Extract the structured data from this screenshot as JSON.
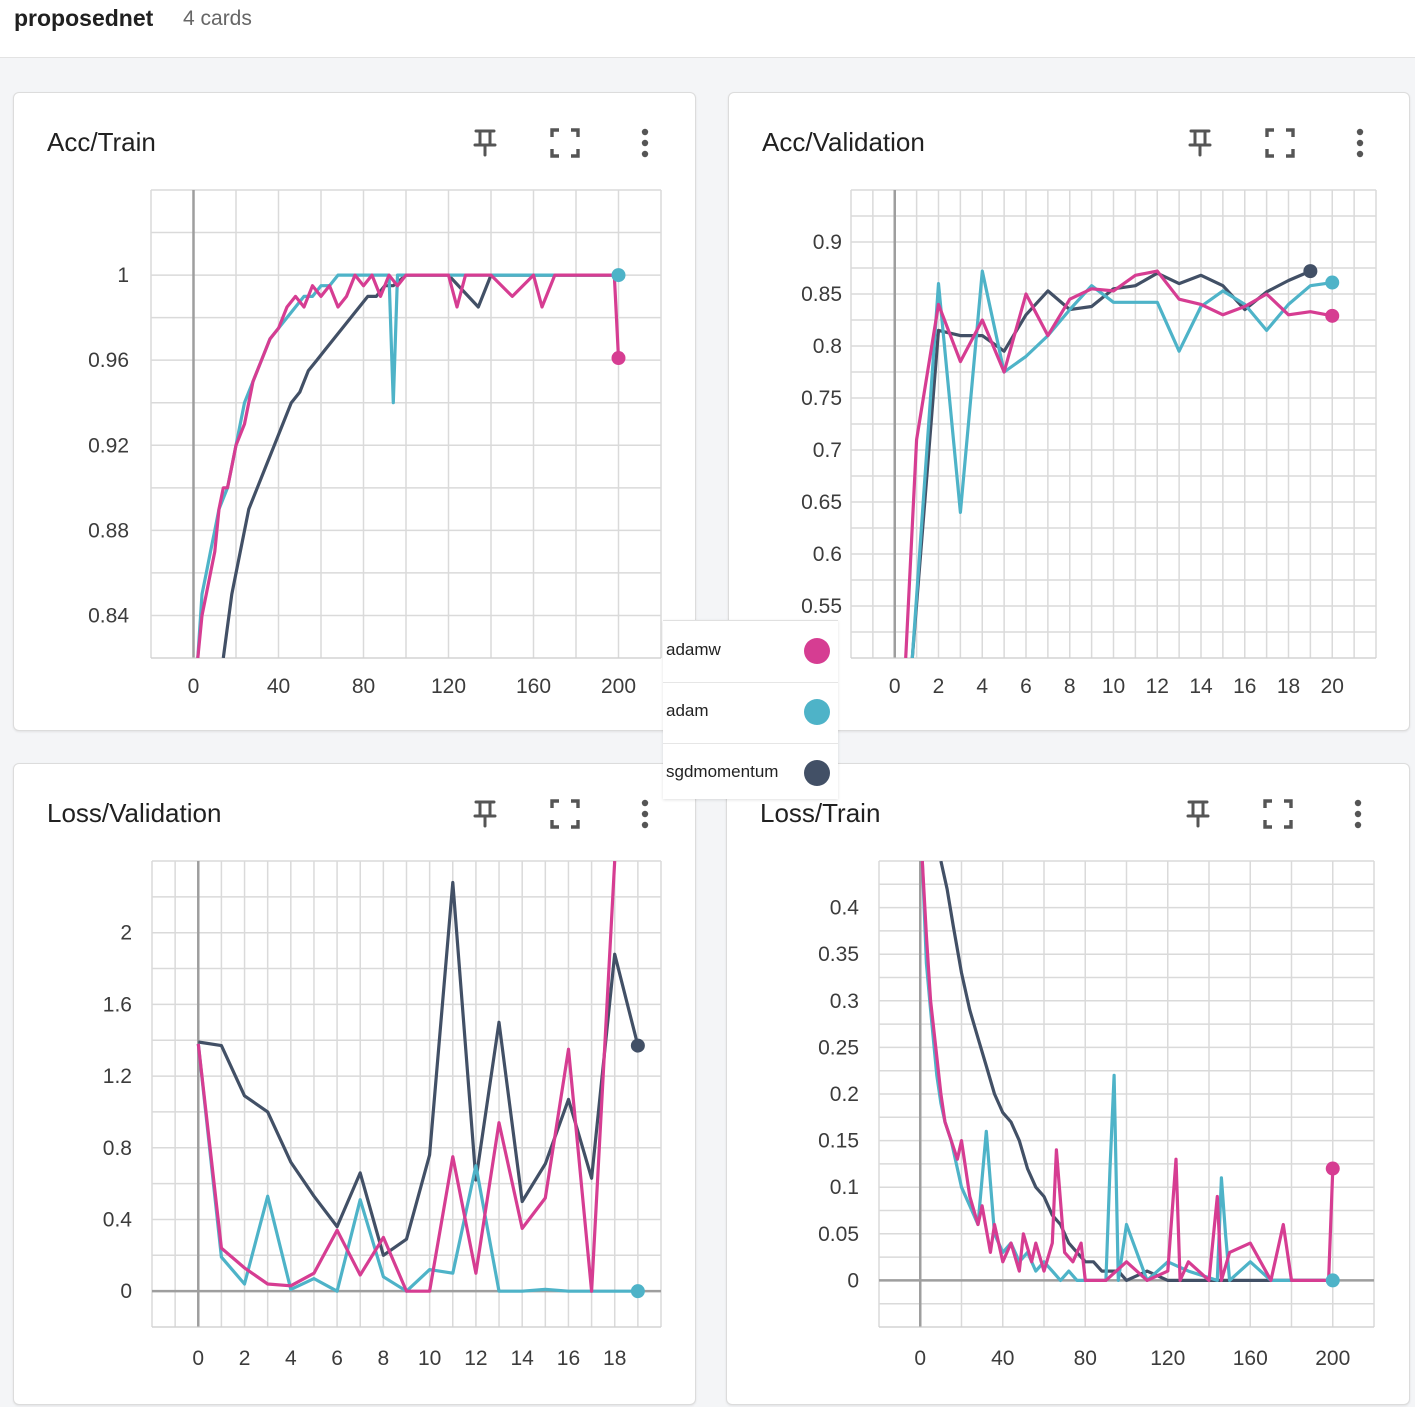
{
  "header": {
    "title": "proposednet",
    "card_count": "4 cards"
  },
  "colors": {
    "adamw": "#d63d92",
    "adam": "#4eb3c8",
    "sgdmomentum": "#425066"
  },
  "legend": {
    "items": [
      {
        "name": "adamw",
        "color": "#d63d92"
      },
      {
        "name": "adam",
        "color": "#4eb3c8"
      },
      {
        "name": "sgdmomentum",
        "color": "#425066"
      }
    ]
  },
  "icons": {
    "pin": "pin-icon",
    "expand": "fullscreen-icon",
    "menu": "more-vert-icon"
  },
  "chart_data": [
    {
      "type": "line",
      "title": "Acc/Train",
      "xlim": [
        -20,
        220
      ],
      "ylim": [
        0.82,
        1.04
      ],
      "xticks": [
        0,
        40,
        80,
        120,
        160,
        200
      ],
      "yticks": [
        0.84,
        0.88,
        0.92,
        0.96,
        1
      ],
      "ytick_labels": [
        "0.84",
        "0.88",
        "0.92",
        "0.96",
        "1"
      ],
      "grid": true,
      "series": [
        {
          "name": "adamw",
          "color": "#d63d92",
          "end_marker": true,
          "x": [
            2,
            4,
            6,
            8,
            10,
            12,
            14,
            16,
            18,
            20,
            24,
            28,
            32,
            36,
            40,
            44,
            48,
            52,
            56,
            60,
            64,
            68,
            72,
            76,
            80,
            84,
            88,
            92,
            96,
            100,
            110,
            120,
            124,
            128,
            136,
            140,
            150,
            160,
            164,
            170,
            180,
            190,
            198,
            200
          ],
          "y": [
            0.82,
            0.84,
            0.85,
            0.86,
            0.87,
            0.89,
            0.9,
            0.9,
            0.91,
            0.92,
            0.93,
            0.95,
            0.96,
            0.97,
            0.975,
            0.985,
            0.99,
            0.985,
            0.995,
            0.99,
            0.995,
            0.985,
            0.99,
            1.0,
            0.995,
            1.0,
            0.99,
            1.0,
            0.995,
            1.0,
            1.0,
            1.0,
            0.985,
            1.0,
            1.0,
            1.0,
            0.99,
            1.0,
            0.985,
            1.0,
            1.0,
            1.0,
            1.0,
            0.961
          ]
        },
        {
          "name": "adam",
          "color": "#4eb3c8",
          "end_marker": true,
          "x": [
            2,
            4,
            6,
            8,
            10,
            12,
            16,
            20,
            24,
            28,
            32,
            36,
            40,
            44,
            48,
            52,
            56,
            60,
            64,
            68,
            72,
            76,
            80,
            84,
            88,
            92,
            94,
            96,
            100,
            110,
            120,
            130,
            140,
            150,
            160,
            170,
            180,
            190,
            200
          ],
          "y": [
            0.82,
            0.85,
            0.86,
            0.87,
            0.88,
            0.89,
            0.9,
            0.92,
            0.94,
            0.95,
            0.96,
            0.97,
            0.975,
            0.98,
            0.985,
            0.99,
            0.99,
            0.995,
            0.995,
            1.0,
            1.0,
            1.0,
            1.0,
            1.0,
            1.0,
            1.0,
            0.94,
            1.0,
            1.0,
            1.0,
            1.0,
            1.0,
            1.0,
            1.0,
            1.0,
            1.0,
            1.0,
            1.0,
            1.0
          ]
        },
        {
          "name": "sgdmomentum",
          "color": "#425066",
          "end_marker": false,
          "x": [
            14,
            18,
            22,
            26,
            30,
            34,
            38,
            42,
            46,
            50,
            54,
            58,
            62,
            66,
            70,
            74,
            78,
            82,
            86,
            90,
            94,
            100,
            110,
            120,
            134,
            140,
            150,
            160,
            170,
            180,
            190,
            200
          ],
          "y": [
            0.82,
            0.85,
            0.87,
            0.89,
            0.9,
            0.91,
            0.92,
            0.93,
            0.94,
            0.945,
            0.955,
            0.96,
            0.965,
            0.97,
            0.975,
            0.98,
            0.985,
            0.99,
            0.99,
            0.995,
            0.995,
            1.0,
            1.0,
            1.0,
            0.985,
            1.0,
            1.0,
            1.0,
            1.0,
            1.0,
            1.0,
            1.0
          ]
        }
      ]
    },
    {
      "type": "line",
      "title": "Acc/Validation",
      "xlim": [
        -2,
        22
      ],
      "ylim": [
        0.5,
        0.95
      ],
      "xticks": [
        0,
        2,
        4,
        6,
        8,
        10,
        12,
        14,
        16,
        18,
        20
      ],
      "yticks": [
        0.55,
        0.6,
        0.65,
        0.7,
        0.75,
        0.8,
        0.85,
        0.9
      ],
      "ytick_labels": [
        "0.55",
        "0.6",
        "0.65",
        "0.7",
        "0.75",
        "0.8",
        "0.85",
        "0.9"
      ],
      "grid": true,
      "series": [
        {
          "name": "adamw",
          "color": "#d63d92",
          "end_marker": true,
          "x": [
            0.5,
            1,
            2,
            3,
            4,
            5,
            6,
            7,
            8,
            9,
            10,
            11,
            12,
            13,
            14,
            15,
            16,
            17,
            18,
            19,
            20
          ],
          "y": [
            0.5,
            0.71,
            0.84,
            0.785,
            0.825,
            0.775,
            0.85,
            0.81,
            0.845,
            0.855,
            0.853,
            0.868,
            0.872,
            0.845,
            0.84,
            0.83,
            0.838,
            0.85,
            0.83,
            0.833,
            0.829
          ]
        },
        {
          "name": "adam",
          "color": "#4eb3c8",
          "end_marker": true,
          "x": [
            0.8,
            2,
            3,
            4,
            5,
            6,
            7,
            8,
            9,
            10,
            11,
            12,
            13,
            14,
            15,
            16,
            17,
            18,
            19,
            20
          ],
          "y": [
            0.5,
            0.86,
            0.64,
            0.872,
            0.775,
            0.79,
            0.81,
            0.835,
            0.858,
            0.842,
            0.842,
            0.842,
            0.795,
            0.838,
            0.853,
            0.84,
            0.815,
            0.84,
            0.858,
            0.861
          ]
        },
        {
          "name": "sgdmomentum",
          "color": "#425066",
          "end_marker": true,
          "x": [
            0.8,
            2,
            3,
            4,
            5,
            6,
            7,
            8,
            9,
            10,
            11,
            12,
            13,
            14,
            15,
            16,
            17,
            18,
            19
          ],
          "y": [
            0.5,
            0.815,
            0.81,
            0.81,
            0.795,
            0.83,
            0.853,
            0.835,
            0.838,
            0.855,
            0.858,
            0.87,
            0.86,
            0.868,
            0.858,
            0.835,
            0.852,
            0.863,
            0.872
          ]
        }
      ]
    },
    {
      "type": "line",
      "title": "Loss/Validation",
      "xlim": [
        -2,
        20
      ],
      "ylim": [
        -0.2,
        2.4
      ],
      "xticks": [
        0,
        2,
        4,
        6,
        8,
        10,
        12,
        14,
        16,
        18
      ],
      "yticks": [
        0,
        0.4,
        0.8,
        1.2,
        1.6,
        2
      ],
      "ytick_labels": [
        "0",
        "0.4",
        "0.8",
        "1.2",
        "1.6",
        "2"
      ],
      "grid": true,
      "series": [
        {
          "name": "adamw",
          "color": "#d63d92",
          "end_marker": false,
          "x": [
            0,
            1,
            2,
            3,
            4,
            5,
            6,
            7,
            8,
            9,
            10,
            11,
            12,
            13,
            14,
            15,
            16,
            17,
            18
          ],
          "y": [
            1.38,
            0.24,
            0.13,
            0.04,
            0.03,
            0.1,
            0.34,
            0.09,
            0.3,
            0.0,
            0.0,
            0.75,
            0.1,
            0.94,
            0.35,
            0.52,
            1.35,
            0.0,
            2.4
          ]
        },
        {
          "name": "adam",
          "color": "#4eb3c8",
          "end_marker": true,
          "x": [
            0,
            1,
            2,
            3,
            4,
            5,
            6,
            7,
            8,
            9,
            10,
            11,
            12,
            13,
            14,
            15,
            16,
            17,
            18,
            19
          ],
          "y": [
            1.38,
            0.19,
            0.04,
            0.53,
            0.01,
            0.07,
            0.0,
            0.51,
            0.08,
            0.0,
            0.12,
            0.1,
            0.7,
            0.0,
            0.0,
            0.01,
            0.0,
            0.0,
            0.0,
            0.0
          ]
        },
        {
          "name": "sgdmomentum",
          "color": "#425066",
          "end_marker": true,
          "x": [
            0,
            1,
            2,
            3,
            4,
            5,
            6,
            7,
            8,
            9,
            10,
            11,
            12,
            13,
            14,
            15,
            16,
            17,
            18,
            19
          ],
          "y": [
            1.39,
            1.37,
            1.09,
            1.0,
            0.72,
            0.53,
            0.36,
            0.66,
            0.2,
            0.29,
            0.76,
            2.28,
            0.62,
            1.5,
            0.5,
            0.71,
            1.07,
            0.63,
            1.88,
            1.37
          ]
        }
      ]
    },
    {
      "type": "line",
      "title": "Loss/Train",
      "xlim": [
        -20,
        220
      ],
      "ylim": [
        -0.05,
        0.45
      ],
      "xticks": [
        0,
        40,
        80,
        120,
        160,
        200
      ],
      "yticks": [
        0,
        0.05,
        0.1,
        0.15,
        0.2,
        0.25,
        0.3,
        0.35,
        0.4
      ],
      "ytick_labels": [
        "0",
        "0.05",
        "0.1",
        "0.15",
        "0.2",
        "0.25",
        "0.3",
        "0.35",
        "0.4"
      ],
      "grid": true,
      "series": [
        {
          "name": "adamw",
          "color": "#d63d92",
          "end_marker": true,
          "x": [
            1,
            3,
            5,
            8,
            10,
            12,
            15,
            18,
            20,
            24,
            28,
            30,
            34,
            36,
            40,
            44,
            48,
            50,
            54,
            56,
            60,
            64,
            66,
            70,
            74,
            78,
            80,
            90,
            100,
            110,
            120,
            124,
            126,
            130,
            140,
            144,
            146,
            150,
            160,
            170,
            176,
            180,
            190,
            196,
            198,
            200
          ],
          "y": [
            0.45,
            0.37,
            0.3,
            0.24,
            0.2,
            0.17,
            0.15,
            0.13,
            0.15,
            0.09,
            0.06,
            0.08,
            0.03,
            0.06,
            0.02,
            0.04,
            0.01,
            0.05,
            0.02,
            0.04,
            0.01,
            0.04,
            0.14,
            0.03,
            0.02,
            0.04,
            0.0,
            0.0,
            0.02,
            0.0,
            0.01,
            0.13,
            0.0,
            0.02,
            0.0,
            0.09,
            0.0,
            0.03,
            0.04,
            0.0,
            0.06,
            0.0,
            0.0,
            0.0,
            0.0,
            0.12
          ]
        },
        {
          "name": "adam",
          "color": "#4eb3c8",
          "end_marker": true,
          "x": [
            1,
            3,
            5,
            8,
            10,
            12,
            15,
            18,
            20,
            24,
            28,
            32,
            36,
            40,
            44,
            48,
            52,
            56,
            60,
            64,
            68,
            72,
            76,
            80,
            90,
            92,
            94,
            96,
            100,
            110,
            120,
            130,
            144,
            146,
            148,
            150,
            160,
            170,
            180,
            190,
            200
          ],
          "y": [
            0.45,
            0.34,
            0.29,
            0.22,
            0.19,
            0.17,
            0.15,
            0.12,
            0.1,
            0.08,
            0.06,
            0.16,
            0.05,
            0.03,
            0.04,
            0.02,
            0.03,
            0.01,
            0.02,
            0.01,
            0.0,
            0.01,
            0.0,
            0.0,
            0.0,
            0.12,
            0.22,
            0.0,
            0.06,
            0.0,
            0.02,
            0.01,
            0.0,
            0.11,
            0.05,
            0.0,
            0.02,
            0.0,
            0.0,
            0.0,
            0.0
          ]
        },
        {
          "name": "sgdmomentum",
          "color": "#425066",
          "end_marker": false,
          "x": [
            10,
            13,
            16,
            20,
            24,
            28,
            32,
            36,
            40,
            44,
            48,
            52,
            56,
            60,
            64,
            68,
            72,
            76,
            80,
            84,
            88,
            92,
            96,
            100,
            110,
            120,
            130,
            140,
            150,
            160,
            170,
            180,
            190,
            200
          ],
          "y": [
            0.45,
            0.42,
            0.38,
            0.33,
            0.29,
            0.26,
            0.23,
            0.2,
            0.18,
            0.17,
            0.15,
            0.12,
            0.1,
            0.09,
            0.07,
            0.06,
            0.04,
            0.03,
            0.02,
            0.02,
            0.01,
            0.01,
            0.01,
            0.0,
            0.01,
            0.0,
            0.0,
            0.0,
            0.0,
            0.0,
            0.0,
            0.0,
            0.0,
            0.0
          ]
        }
      ]
    }
  ]
}
